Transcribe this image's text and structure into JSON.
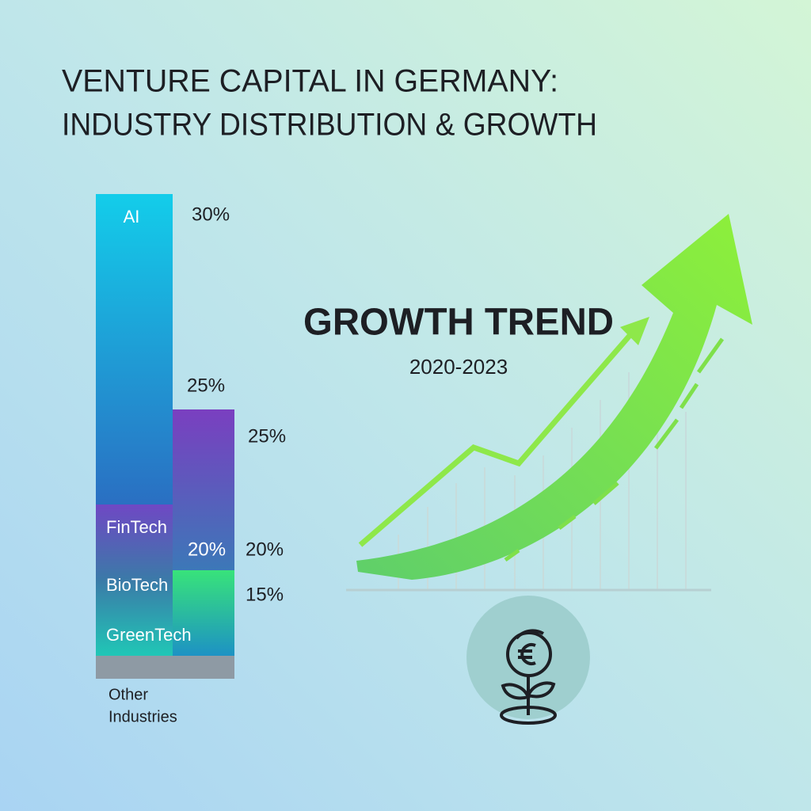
{
  "title": [
    "VENTURE CAPITAL IN GERMANY:",
    "INDUSTRY DISTRIBUTION & GROWTH"
  ],
  "distribution": {
    "segments": [
      "AI",
      "FinTech",
      "BioTech",
      "GreenTech"
    ],
    "other": [
      "Other",
      "Industries"
    ],
    "percent_labels": [
      "30%",
      "25%",
      "25%",
      "20%",
      "20%",
      "15%"
    ]
  },
  "growth": {
    "title": "GROWTH TREND",
    "period": "2020-2023"
  }
}
